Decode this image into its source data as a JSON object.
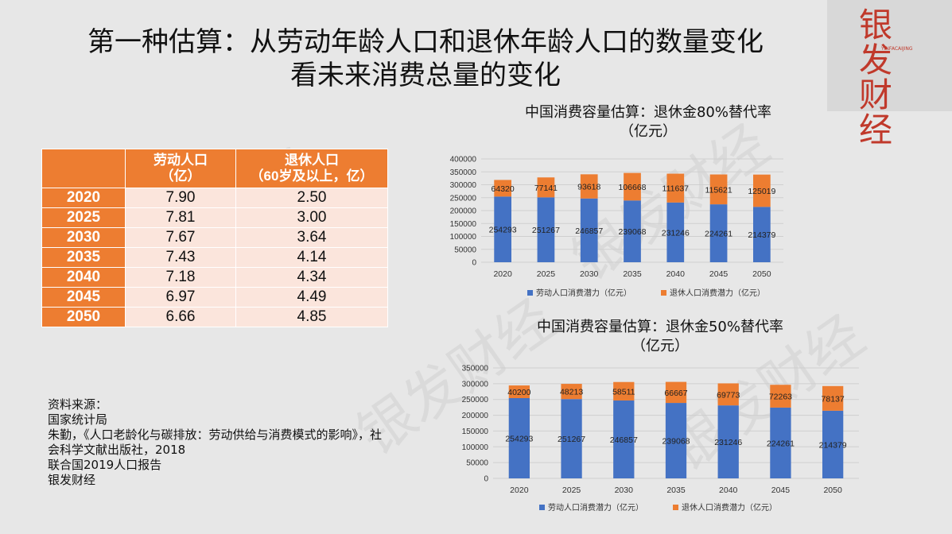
{
  "slide": {
    "title_line1": "第一种估算：从劳动年龄人口和退休年龄人口的数量变化",
    "title_line2": "看未来消费总量的变化",
    "watermark": "银发财经",
    "logo_text": "银发财经",
    "logo_sub": "YINFACAIJING"
  },
  "table": {
    "header_labor_line1": "劳动人口",
    "header_labor_line2": "（亿）",
    "header_retire_line1": "退休人口",
    "header_retire_line2": "（60岁及以上，亿）",
    "rows": [
      {
        "year": "2020",
        "labor": "7.90",
        "retire": "2.50"
      },
      {
        "year": "2025",
        "labor": "7.81",
        "retire": "3.00"
      },
      {
        "year": "2030",
        "labor": "7.67",
        "retire": "3.64"
      },
      {
        "year": "2035",
        "labor": "7.43",
        "retire": "4.14"
      },
      {
        "year": "2040",
        "labor": "7.18",
        "retire": "4.34"
      },
      {
        "year": "2045",
        "labor": "6.97",
        "retire": "4.49"
      },
      {
        "year": "2050",
        "labor": "6.66",
        "retire": "4.85"
      }
    ]
  },
  "sources": {
    "heading": "资料来源：",
    "line1": "国家统计局",
    "line2": "朱勤，《人口老龄化与碳排放：劳动供给与消费模式的影响》，社会科学文献出版社，2018",
    "line3": "联合国2019人口报告",
    "line4": "银发财经"
  },
  "chart_data": [
    {
      "type": "bar",
      "stacked": true,
      "title_line1": "中国消费容量估算：退休金80%替代率",
      "title_line2": "（亿元）",
      "categories": [
        "2020",
        "2025",
        "2030",
        "2035",
        "2040",
        "2045",
        "2050"
      ],
      "series": [
        {
          "name": "劳动人口消费潜力（亿元）",
          "color": "#4472c4",
          "values": [
            254293,
            251267,
            246857,
            239068,
            231246,
            224261,
            214379
          ]
        },
        {
          "name": "退休人口消费潜力（亿元）",
          "color": "#ed7d31",
          "values": [
            64320,
            77141,
            93618,
            106668,
            111637,
            115621,
            125019
          ]
        }
      ],
      "ylim": [
        0,
        400000
      ],
      "yticks": [
        0,
        50000,
        100000,
        150000,
        200000,
        250000,
        300000,
        350000,
        400000
      ],
      "grid": true,
      "legend": "bottom"
    },
    {
      "type": "bar",
      "stacked": true,
      "title_line1": "中国消费容量估算：退休金50%替代率",
      "title_line2": "（亿元）",
      "categories": [
        "2020",
        "2025",
        "2030",
        "2035",
        "2040",
        "2045",
        "2050"
      ],
      "series": [
        {
          "name": "劳动人口消费潜力（亿元）",
          "color": "#4472c4",
          "values": [
            254293,
            251267,
            246857,
            239068,
            231246,
            224261,
            214379
          ]
        },
        {
          "name": "退休人口消费潜力（亿元）",
          "color": "#ed7d31",
          "values": [
            40200,
            48213,
            58511,
            66667,
            69773,
            72263,
            78137
          ]
        }
      ],
      "ylim": [
        0,
        350000
      ],
      "yticks": [
        0,
        50000,
        100000,
        150000,
        200000,
        250000,
        300000,
        350000
      ],
      "grid": true,
      "legend": "bottom"
    }
  ]
}
